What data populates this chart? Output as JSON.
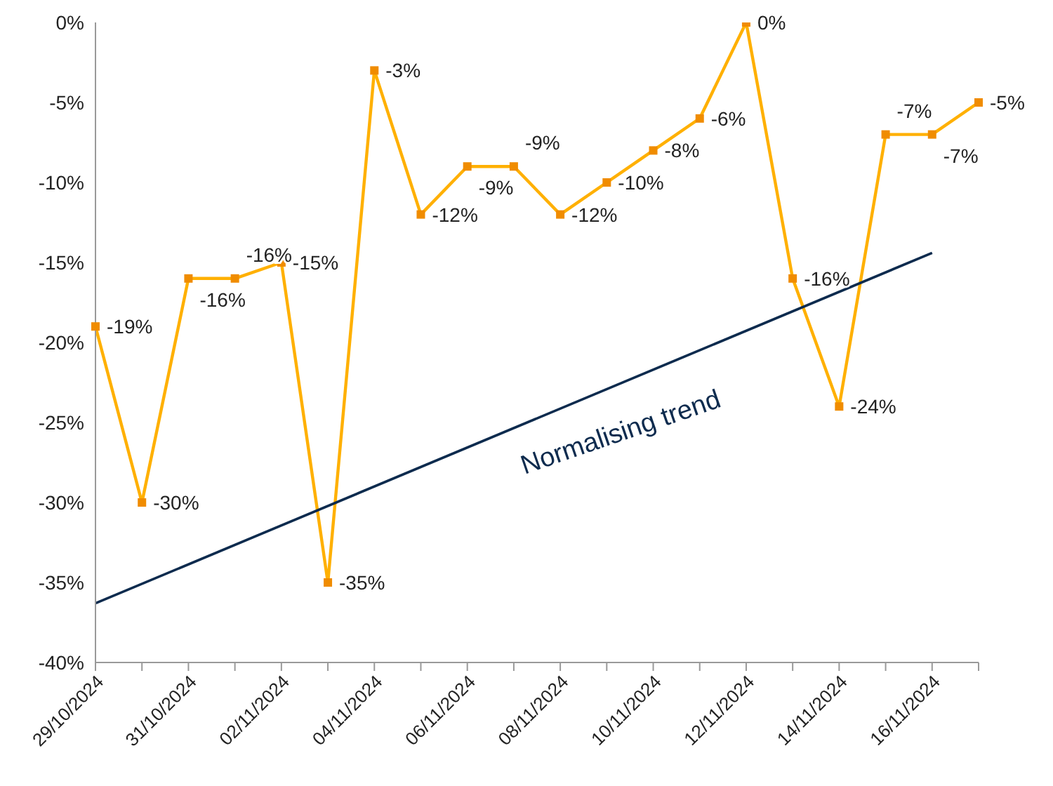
{
  "chart_data": {
    "type": "line",
    "categories": [
      "29/10/2024",
      null,
      "31/10/2024",
      null,
      "02/11/2024",
      null,
      "04/11/2024",
      null,
      "06/11/2024",
      null,
      "08/11/2024",
      null,
      "10/11/2024",
      null,
      "12/11/2024",
      null,
      "14/11/2024",
      null,
      "16/11/2024",
      null
    ],
    "series": [
      {
        "color": "#ffb000",
        "values": [
          -19,
          -30,
          -16,
          -16,
          -15,
          -35,
          -3,
          -12,
          -9,
          -9,
          -12,
          -10,
          -8,
          -6,
          0,
          -16,
          -24,
          -7,
          -7,
          -5
        ],
        "value_labels": [
          "-19%",
          "-30%",
          "-16%",
          "-16%",
          "-15%",
          "-35%",
          "-3%",
          "-12%",
          "-9%",
          "-9%",
          "-12%",
          "-10%",
          "-8%",
          "-6%",
          "0%",
          "-16%",
          "-24%",
          "-7%",
          "-7%",
          "-5%"
        ],
        "marker": "square"
      },
      {
        "type": "line",
        "color": "#0d2b4e",
        "x": [
          "29/10/2024",
          "16/11/2024"
        ],
        "values": [
          -36.3,
          -14.4
        ],
        "marker": "none"
      }
    ],
    "ylim": [
      -40,
      0
    ],
    "yticks": [
      {
        "value": 0,
        "label": "0%"
      },
      {
        "value": -5,
        "label": "-5%"
      },
      {
        "value": -10,
        "label": "-10%"
      },
      {
        "value": -15,
        "label": "-15%"
      },
      {
        "value": -20,
        "label": "-20%"
      },
      {
        "value": -25,
        "label": "-25%"
      },
      {
        "value": -30,
        "label": "-30%"
      },
      {
        "value": -35,
        "label": "-35%"
      },
      {
        "value": -40,
        "label": "-40%"
      }
    ],
    "annotations": [
      "Normalising trend"
    ]
  }
}
